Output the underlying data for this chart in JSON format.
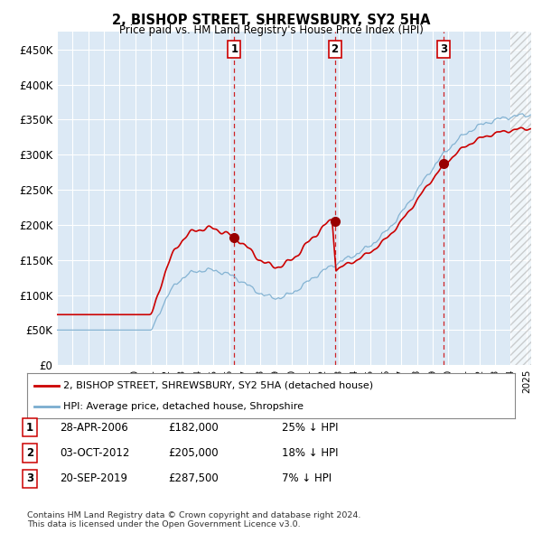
{
  "title": "2, BISHOP STREET, SHREWSBURY, SY2 5HA",
  "subtitle": "Price paid vs. HM Land Registry's House Price Index (HPI)",
  "ylim": [
    0,
    475000
  ],
  "yticks": [
    0,
    50000,
    100000,
    150000,
    200000,
    250000,
    300000,
    350000,
    400000,
    450000
  ],
  "ytick_labels": [
    "£0",
    "£50K",
    "£100K",
    "£150K",
    "£200K",
    "£250K",
    "£300K",
    "£350K",
    "£400K",
    "£450K"
  ],
  "background_color": "#ffffff",
  "plot_bg_color": "#dce9f5",
  "grid_color": "#ffffff",
  "sale_times": [
    2006.33,
    2012.75,
    2019.72
  ],
  "sale_prices": [
    182000,
    205000,
    287500
  ],
  "sale_labels": [
    "1",
    "2",
    "3"
  ],
  "sale_table": [
    [
      "1",
      "28-APR-2006",
      "£182,000",
      "25% ↓ HPI"
    ],
    [
      "2",
      "03-OCT-2012",
      "£205,000",
      "18% ↓ HPI"
    ],
    [
      "3",
      "20-SEP-2019",
      "£287,500",
      "7% ↓ HPI"
    ]
  ],
  "legend_labels": [
    "2, BISHOP STREET, SHREWSBURY, SY2 5HA (detached house)",
    "HPI: Average price, detached house, Shropshire"
  ],
  "line_color_red": "#cc0000",
  "line_color_blue": "#7aadcf",
  "vline_color": "#cc0000",
  "footnote": "Contains HM Land Registry data © Crown copyright and database right 2024.\nThis data is licensed under the Open Government Licence v3.0.",
  "xlim_start": 1995,
  "xlim_end": 2025.3,
  "hatch_start": 2024.0
}
